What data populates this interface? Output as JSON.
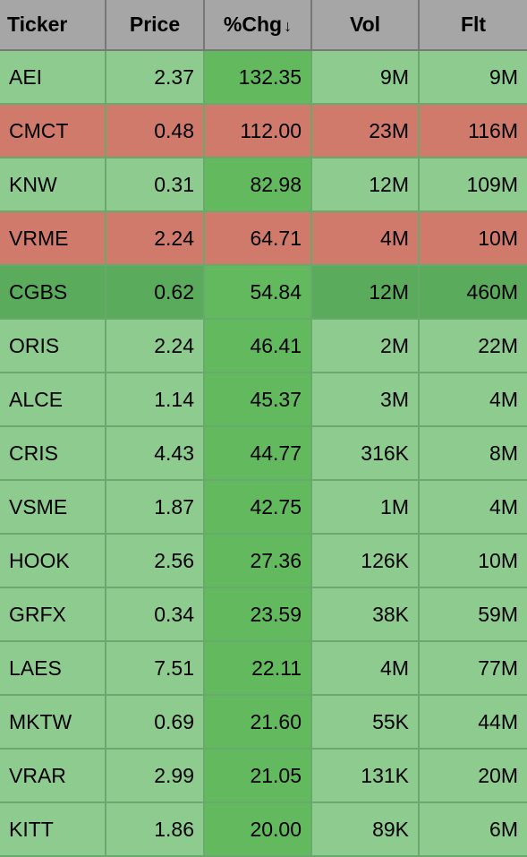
{
  "colors": {
    "header_bg": "#a6a6a6",
    "row_green_light": "#8ecb8f",
    "row_green_mid": "#62b95e",
    "row_green_dark": "#5bab5c",
    "row_red": "#cf7a6b",
    "border_gray": "#777777",
    "border_green": "#6aa96d",
    "text": "#000000"
  },
  "columns": {
    "ticker": "Ticker",
    "price": "Price",
    "chg": "%Chg",
    "vol": "Vol",
    "flt": "Flt"
  },
  "sort": {
    "column": "chg",
    "direction": "desc",
    "indicator": "↓"
  },
  "rows": [
    {
      "ticker": "AEI",
      "price": "2.37",
      "chg": "132.35",
      "vol": "9M",
      "flt": "9M",
      "bg": {
        "ticker": "#8ecb8f",
        "price": "#8ecb8f",
        "chg": "#62b95e",
        "vol": "#8ecb8f",
        "flt": "#8ecb8f"
      }
    },
    {
      "ticker": "CMCT",
      "price": "0.48",
      "chg": "112.00",
      "vol": "23M",
      "flt": "116M",
      "bg": {
        "ticker": "#cf7a6b",
        "price": "#cf7a6b",
        "chg": "#cf7a6b",
        "vol": "#cf7a6b",
        "flt": "#cf7a6b"
      }
    },
    {
      "ticker": "KNW",
      "price": "0.31",
      "chg": "82.98",
      "vol": "12M",
      "flt": "109M",
      "bg": {
        "ticker": "#8ecb8f",
        "price": "#8ecb8f",
        "chg": "#62b95e",
        "vol": "#8ecb8f",
        "flt": "#8ecb8f"
      }
    },
    {
      "ticker": "VRME",
      "price": "2.24",
      "chg": "64.71",
      "vol": "4M",
      "flt": "10M",
      "bg": {
        "ticker": "#cf7a6b",
        "price": "#cf7a6b",
        "chg": "#cf7a6b",
        "vol": "#cf7a6b",
        "flt": "#cf7a6b"
      }
    },
    {
      "ticker": "CGBS",
      "price": "0.62",
      "chg": "54.84",
      "vol": "12M",
      "flt": "460M",
      "bg": {
        "ticker": "#5bab5c",
        "price": "#5bab5c",
        "chg": "#62b95e",
        "vol": "#5bab5c",
        "flt": "#5bab5c"
      }
    },
    {
      "ticker": "ORIS",
      "price": "2.24",
      "chg": "46.41",
      "vol": "2M",
      "flt": "22M",
      "bg": {
        "ticker": "#8ecb8f",
        "price": "#8ecb8f",
        "chg": "#62b95e",
        "vol": "#8ecb8f",
        "flt": "#8ecb8f"
      }
    },
    {
      "ticker": "ALCE",
      "price": "1.14",
      "chg": "45.37",
      "vol": "3M",
      "flt": "4M",
      "bg": {
        "ticker": "#8ecb8f",
        "price": "#8ecb8f",
        "chg": "#62b95e",
        "vol": "#8ecb8f",
        "flt": "#8ecb8f"
      }
    },
    {
      "ticker": "CRIS",
      "price": "4.43",
      "chg": "44.77",
      "vol": "316K",
      "flt": "8M",
      "bg": {
        "ticker": "#8ecb8f",
        "price": "#8ecb8f",
        "chg": "#62b95e",
        "vol": "#8ecb8f",
        "flt": "#8ecb8f"
      }
    },
    {
      "ticker": "VSME",
      "price": "1.87",
      "chg": "42.75",
      "vol": "1M",
      "flt": "4M",
      "bg": {
        "ticker": "#8ecb8f",
        "price": "#8ecb8f",
        "chg": "#62b95e",
        "vol": "#8ecb8f",
        "flt": "#8ecb8f"
      }
    },
    {
      "ticker": "HOOK",
      "price": "2.56",
      "chg": "27.36",
      "vol": "126K",
      "flt": "10M",
      "bg": {
        "ticker": "#8ecb8f",
        "price": "#8ecb8f",
        "chg": "#62b95e",
        "vol": "#8ecb8f",
        "flt": "#8ecb8f"
      }
    },
    {
      "ticker": "GRFX",
      "price": "0.34",
      "chg": "23.59",
      "vol": "38K",
      "flt": "59M",
      "bg": {
        "ticker": "#8ecb8f",
        "price": "#8ecb8f",
        "chg": "#62b95e",
        "vol": "#8ecb8f",
        "flt": "#8ecb8f"
      }
    },
    {
      "ticker": "LAES",
      "price": "7.51",
      "chg": "22.11",
      "vol": "4M",
      "flt": "77M",
      "bg": {
        "ticker": "#8ecb8f",
        "price": "#8ecb8f",
        "chg": "#62b95e",
        "vol": "#8ecb8f",
        "flt": "#8ecb8f"
      }
    },
    {
      "ticker": "MKTW",
      "price": "0.69",
      "chg": "21.60",
      "vol": "55K",
      "flt": "44M",
      "bg": {
        "ticker": "#8ecb8f",
        "price": "#8ecb8f",
        "chg": "#62b95e",
        "vol": "#8ecb8f",
        "flt": "#8ecb8f"
      }
    },
    {
      "ticker": "VRAR",
      "price": "2.99",
      "chg": "21.05",
      "vol": "131K",
      "flt": "20M",
      "bg": {
        "ticker": "#8ecb8f",
        "price": "#8ecb8f",
        "chg": "#62b95e",
        "vol": "#8ecb8f",
        "flt": "#8ecb8f"
      }
    },
    {
      "ticker": "KITT",
      "price": "1.86",
      "chg": "20.00",
      "vol": "89K",
      "flt": "6M",
      "bg": {
        "ticker": "#8ecb8f",
        "price": "#8ecb8f",
        "chg": "#62b95e",
        "vol": "#8ecb8f",
        "flt": "#8ecb8f"
      }
    }
  ]
}
